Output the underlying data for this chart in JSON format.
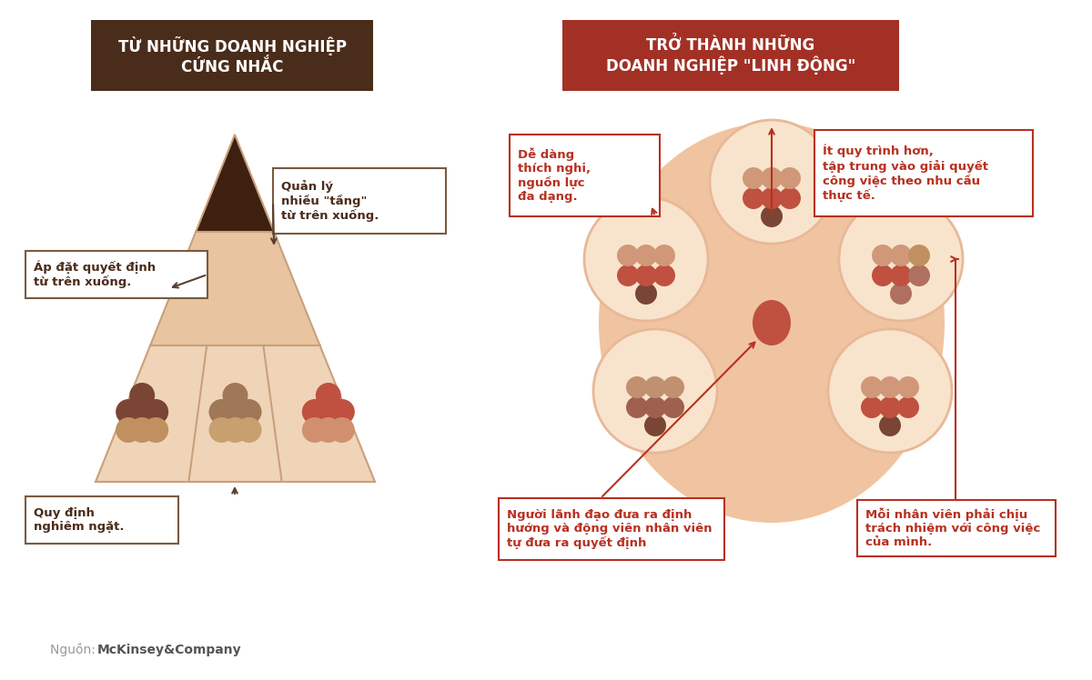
{
  "bg_color": "#ffffff",
  "left_header_bg": "#4a2c1a",
  "left_header_text": "TỪ NHỮNG DOANH NGHIỆP\nCỨNG NHẮC",
  "right_header_bg": "#a33025",
  "right_header_text": "TRỞ THÀNH NHỮNG\nDOANH NGHIỆP \"LINH ĐỘNG\"",
  "header_text_color": "#ffffff",
  "triangle_dark_color": "#3d2010",
  "triangle_mid_color": "#e8c4a0",
  "triangle_bot_color": "#f0d4b8",
  "triangle_line_color": "#c9a07a",
  "ellipse_bg": "#f0c4a0",
  "subcircle_bg": "#f8e4cc",
  "subcircle_border": "#e8b898",
  "center_ellipse_color": "#c05040",
  "box_border_left": "#7a5a40",
  "box_border_right": "#b83020",
  "box_text_left": "#4a2c1a",
  "box_text_right": "#b83020",
  "arrow_color_left": "#5a4030",
  "arrow_color_right": "#b83020",
  "dot_left_1": [
    "#7a4535",
    "#7a4535",
    "#7a4535",
    "#7a4535",
    "#c09060",
    "#c09060",
    "#c09060"
  ],
  "dot_left_2": [
    "#a07858",
    "#a07858",
    "#a07858",
    "#a07858",
    "#c8a070",
    "#c8a070",
    "#c8a070"
  ],
  "dot_left_3": [
    "#c05040",
    "#c05040",
    "#c05040",
    "#c05040",
    "#d09070",
    "#d09070",
    "#d09070"
  ],
  "dot_sub_colors": [
    "#c05040",
    "#c05040",
    "#7a4535",
    "#c05040",
    "#c05040",
    "#c09060",
    "#c09060"
  ],
  "dot_sub_colors2": [
    "#c88060",
    "#c88060",
    "#7a4535",
    "#c88060",
    "#c88060",
    "#d4a070",
    "#d4a070"
  ],
  "dot_sub_colors3": [
    "#a06050",
    "#a06050",
    "#7a4535",
    "#a06050",
    "#a06050",
    "#c09060",
    "#c09060"
  ],
  "label_quanly": "Quản lý\nnhiều \"tầng\"\ntừ trên xuống.",
  "label_apdatquyet": "Áp đặt quyết định\ntừ trên xuống.",
  "label_quydinhh": "Quy định\nnghiêm ngặt.",
  "label_dedang": "Dễ dàng\nthích nghi,\nnguồn lực\nđa dạng.",
  "label_itquy": "Ít quy trình hơn,\ntập trung vào giải quyết\ncông việc theo nhu cầu\nthực tế.",
  "label_nguoilanh": "Người lãnh đạo đưa ra định\nhướng và động viên nhân viên\ntự đưa ra quyết định",
  "label_moinhân": "Mỗi nhân viên phải chịu\ntrách nhiệm với công việc\ncủa mình."
}
